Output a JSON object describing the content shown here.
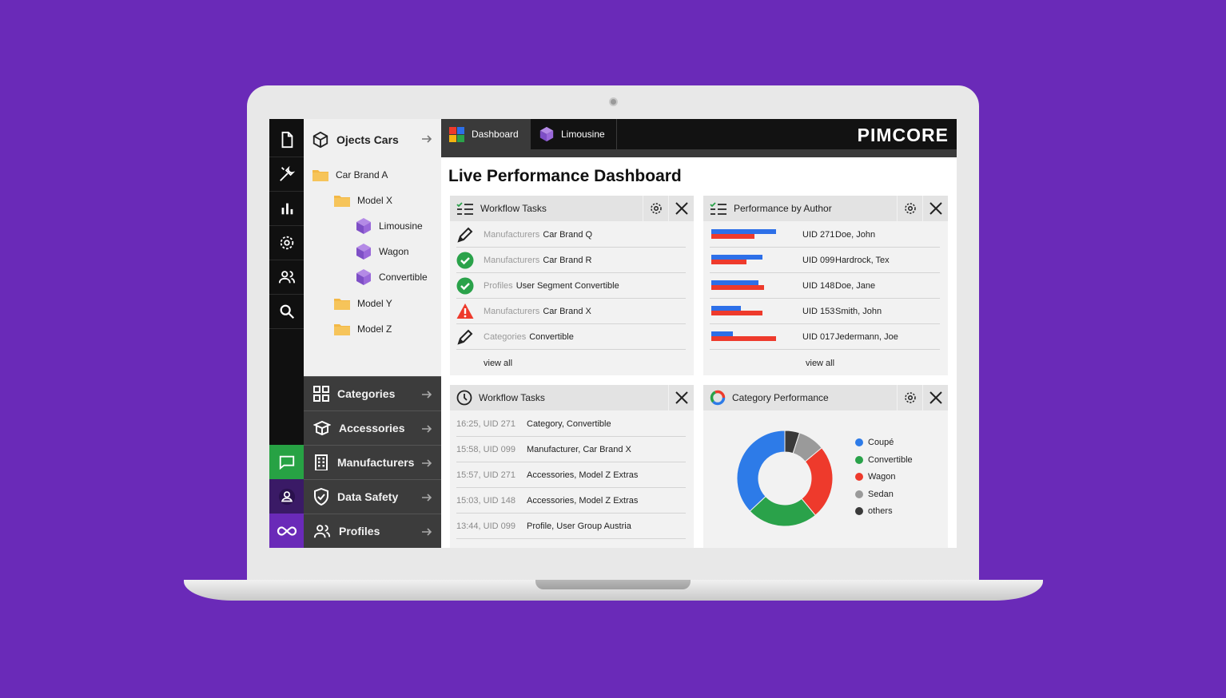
{
  "tree": {
    "title": "Ojects Cars",
    "items": [
      {
        "label": "Car Brand A",
        "type": "folder"
      },
      {
        "label": "Model X",
        "type": "folder"
      },
      {
        "label": "Limousine",
        "type": "object"
      },
      {
        "label": "Wagon",
        "type": "object"
      },
      {
        "label": "Convertible",
        "type": "object"
      },
      {
        "label": "Model Y",
        "type": "folder"
      },
      {
        "label": "Model Z",
        "type": "folder"
      }
    ]
  },
  "menu": {
    "items": [
      {
        "label": "Categories",
        "icon": "grid-icon"
      },
      {
        "label": "Accessories",
        "icon": "box-open-icon"
      },
      {
        "label": "Manufacturers",
        "icon": "building-icon"
      },
      {
        "label": "Data Safety",
        "icon": "shield-check-icon"
      },
      {
        "label": "Profiles",
        "icon": "users-icon"
      }
    ]
  },
  "tabs": [
    {
      "label": "Dashboard",
      "icon": "dashboard-icon",
      "active": true
    },
    {
      "label": "Limousine",
      "icon": "cube-icon",
      "active": false
    }
  ],
  "brand": {
    "logo": "PIMCORE"
  },
  "page": {
    "title": "Live Performance Dashboard"
  },
  "workflow": {
    "title": "Workflow Tasks",
    "rows": [
      {
        "status": "edit",
        "type": "Manufacturers",
        "name": "Car Brand Q"
      },
      {
        "status": "done",
        "type": "Manufacturers",
        "name": "Car Brand R"
      },
      {
        "status": "done",
        "type": "Profiles",
        "name": "User Segment Convertible"
      },
      {
        "status": "warning",
        "type": "Manufacturers",
        "name": "Car Brand X"
      },
      {
        "status": "edit",
        "type": "Categories",
        "name": "Convertible"
      }
    ],
    "view_all": "view all"
  },
  "authors": {
    "title": "Performance by Author",
    "rows": [
      {
        "uid": "UID 271",
        "name": "Doe, John",
        "blue": 0.78,
        "red": 0.52
      },
      {
        "uid": "UID 099",
        "name": "Hardrock, Tex",
        "blue": 0.62,
        "red": 0.42
      },
      {
        "uid": "UID 148",
        "name": "Doe, Jane",
        "blue": 0.57,
        "red": 0.63
      },
      {
        "uid": "UID 153",
        "name": "Smith, John",
        "blue": 0.36,
        "red": 0.62
      },
      {
        "uid": "UID 017",
        "name": "Jedermann, Joe",
        "blue": 0.26,
        "red": 0.78
      }
    ],
    "view_all": "view all",
    "colors": {
      "blue": "#2d6fe8",
      "red": "#ee3a2c"
    }
  },
  "history": {
    "title": "Workflow Tasks",
    "rows": [
      {
        "time": "16:25, UID 271",
        "text": "Category, Convertible"
      },
      {
        "time": "15:58, UID 099",
        "text": "Manufacturer, Car Brand X"
      },
      {
        "time": "15:57, UID 271",
        "text": "Accessories, Model Z Extras"
      },
      {
        "time": "15:03, UID 148",
        "text": "Accessories, Model Z Extras"
      },
      {
        "time": "13:44, UID 099",
        "text": "Profile, User Group Austria"
      }
    ]
  },
  "category": {
    "title": "Category Performance",
    "chart_data": {
      "type": "pie",
      "categories": [
        "Coupé",
        "Convertible",
        "Wagon",
        "Sedan",
        "others"
      ],
      "values": [
        37,
        24,
        25,
        9,
        5
      ],
      "colors": [
        "#2d7be8",
        "#2aa24a",
        "#ee3a2c",
        "#9a9a9a",
        "#3a3a3a"
      ]
    }
  }
}
